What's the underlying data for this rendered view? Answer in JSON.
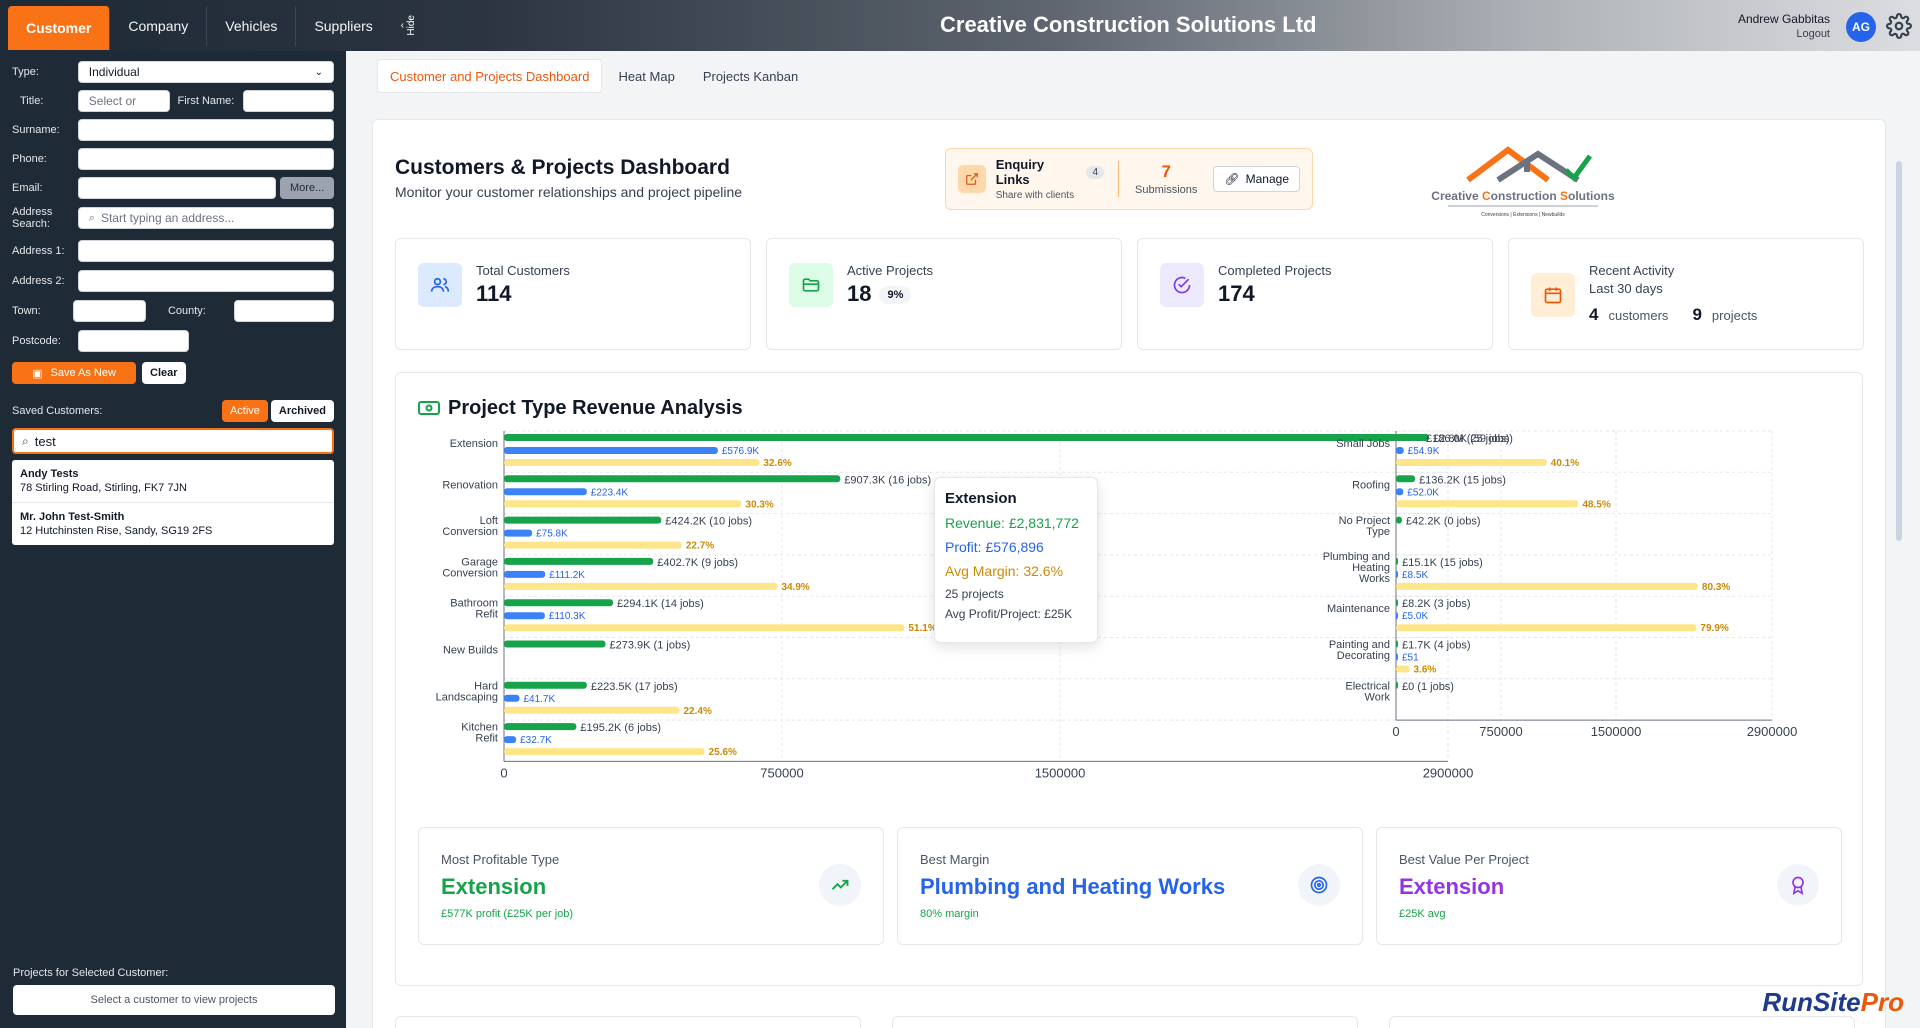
{
  "app_title": "Creative Construction Solutions Ltd",
  "top_tabs": [
    {
      "label": "Customer",
      "active": true
    },
    {
      "label": "Company",
      "active": false
    },
    {
      "label": "Vehicles",
      "active": false
    },
    {
      "label": "Suppliers",
      "active": false
    }
  ],
  "hide_label": "Hide",
  "user": {
    "name": "Andrew Gabbitas",
    "logout": "Logout",
    "initials": "AG"
  },
  "form": {
    "type_label": "Type:",
    "type_value": "Individual",
    "title_label": "Title:",
    "title_placeholder": "Select or",
    "first_name_label": "First Name:",
    "surname_label": "Surname:",
    "phone_label": "Phone:",
    "email_label": "Email:",
    "more_label": "More...",
    "address_search_label": "Address Search:",
    "address_search_placeholder": "Start typing an address...",
    "address1_label": "Address 1:",
    "address2_label": "Address 2:",
    "town_label": "Town:",
    "county_label": "County:",
    "postcode_label": "Postcode:",
    "save_label": "Save As New",
    "clear_label": "Clear"
  },
  "saved": {
    "label": "Saved Customers:",
    "active_label": "Active",
    "archived_label": "Archived",
    "search_value": "test",
    "customers": [
      {
        "name": "Andy Tests",
        "address": "78 Stirling Road, Stirling, FK7 7JN"
      },
      {
        "name": "Mr. John Test-Smith",
        "address": "12 Hutchinsten Rise, Sandy, SG19 2FS"
      }
    ]
  },
  "projects_for_customer": {
    "label": "Projects for Selected Customer:",
    "placeholder": "Select a customer to view projects"
  },
  "main_tabs": [
    {
      "label": "Customer and Projects Dashboard",
      "active": true
    },
    {
      "label": "Heat Map",
      "active": false
    },
    {
      "label": "Projects Kanban",
      "active": false
    }
  ],
  "dashboard": {
    "title": "Customers & Projects Dashboard",
    "subtitle": "Monitor your customer relationships and project pipeline",
    "enquiry": {
      "title": "Enquiry Links",
      "count_badge": "4",
      "sub": "Share with clients",
      "submissions": "7",
      "submissions_label": "Submissions",
      "manage_label": "Manage"
    },
    "logo": {
      "line1a": "Creative ",
      "line1b": "C",
      "line1c": "onstruction ",
      "line1d": "S",
      "line1e": "olutions",
      "tagline": "Conversions | Extensions | Newbuilds"
    }
  },
  "stats": [
    {
      "label": "Total Customers",
      "value": "114",
      "icon": "users-icon",
      "color": "#2563eb",
      "bg": "#dbeafe"
    },
    {
      "label": "Active Projects",
      "value": "18",
      "badge": "9%",
      "icon": "folder-icon",
      "color": "#16a34a",
      "bg": "#dcfce7"
    },
    {
      "label": "Completed Projects",
      "value": "174",
      "icon": "check-circle-icon",
      "color": "#7c3aed",
      "bg": "#ede9fe"
    },
    {
      "label": "Recent Activity",
      "sub": "Last 30 days",
      "customers": "4",
      "customers_label": "customers",
      "projects": "9",
      "projects_label": "projects",
      "icon": "calendar-icon",
      "color": "#ea580c",
      "bg": "#ffedd5"
    }
  ],
  "revenue": {
    "title": "Project Type Revenue Analysis"
  },
  "tooltip": {
    "title": "Extension",
    "revenue": "Revenue: £2,831,772",
    "profit": "Profit: £576,896",
    "margin": "Avg Margin: 32.6%",
    "projects": "25 projects",
    "avg": "Avg Profit/Project: £25K"
  },
  "chart_data": [
    {
      "type": "bar",
      "orientation": "horizontal",
      "categories": [
        "Extension",
        "Renovation",
        "Loft Conversion",
        "Garage Conversion",
        "Bathroom Refit",
        "New Builds",
        "Hard Landscaping",
        "Kitchen Refit"
      ],
      "series": [
        {
          "values": [
            2831772,
            907300,
            424200,
            402700,
            294100,
            273900,
            223500,
            195200
          ],
          "labels": [
            "£2.8M (25 jobs)",
            "£907.3K (16 jobs)",
            "£424.2K (10 jobs)",
            "£402.7K (9 jobs)",
            "£294.1K (14 jobs)",
            "£273.9K (1 jobs)",
            "£223.5K (17 jobs)",
            "£195.2K (6 jobs)"
          ],
          "color": "#16a34a"
        },
        {
          "values": [
            576896,
            223400,
            75800,
            111200,
            110300,
            0,
            41700,
            32700
          ],
          "labels": [
            "£576.9K",
            "£223.4K",
            "£75.8K",
            "£111.2K",
            "£110.3K",
            "",
            "£41.7K",
            "£32.7K"
          ],
          "color": "#3b82f6"
        },
        {
          "values_pct": [
            32.6,
            30.3,
            22.7,
            34.9,
            51.1,
            0,
            22.4,
            25.6
          ],
          "labels": [
            "32.6%",
            "30.3%",
            "22.7%",
            "34.9%",
            "51.1%",
            "",
            "22.4%",
            "25.6%"
          ],
          "color": "#fde68a",
          "label_color": "#ca8a04"
        }
      ],
      "xticks": [
        "0",
        "750000",
        "1500000",
        "2900000"
      ],
      "xlim": [
        0,
        2900000
      ]
    },
    {
      "type": "bar",
      "orientation": "horizontal",
      "categories": [
        "Small Jobs",
        "Roofing",
        "No Project Type",
        "Plumbing and Heating Works",
        "Maintenance",
        "Painting and Decorating",
        "Electrical Work"
      ],
      "series": [
        {
          "values": [
            186000,
            136200,
            42200,
            15100,
            8200,
            1700,
            0
          ],
          "labels": [
            "£186.0K (59 jobs)",
            "£136.2K (15 jobs)",
            "£42.2K (0 jobs)",
            "£15.1K (15 jobs)",
            "£8.2K (3 jobs)",
            "£1.7K (4 jobs)",
            "£0 (1 jobs)"
          ],
          "color": "#16a34a"
        },
        {
          "values": [
            54900,
            52000,
            0,
            8500,
            5000,
            51,
            0
          ],
          "labels": [
            "£54.9K",
            "£52.0K",
            "",
            "£8.5K",
            "£5.0K",
            "£51",
            ""
          ],
          "color": "#3b82f6"
        },
        {
          "values_pct": [
            40.1,
            48.5,
            0,
            80.3,
            79.9,
            3.6,
            0
          ],
          "labels": [
            "40.1%",
            "48.5%",
            "",
            "80.3%",
            "79.9%",
            "3.6%",
            ""
          ],
          "color": "#fde68a",
          "label_color": "#ca8a04"
        }
      ],
      "xticks": [
        "0",
        "750000",
        "1500000",
        "2900000"
      ],
      "xlim": [
        0,
        2900000
      ]
    }
  ],
  "summary": [
    {
      "label": "Most Profitable Type",
      "value": "Extension",
      "sub": "£577K profit (£25K per job)",
      "color": "#16a34a",
      "icon": "trending-up-icon"
    },
    {
      "label": "Best Margin",
      "value": "Plumbing and Heating Works",
      "sub": "80% margin",
      "color": "#2563eb",
      "sub_color": "#16a34a",
      "icon": "target-icon"
    },
    {
      "label": "Best Value Per Project",
      "value": "Extension",
      "sub": "£25K avg",
      "color": "#9333ea",
      "sub_color": "#16a34a",
      "icon": "award-icon"
    }
  ],
  "brand": {
    "part1": "RunSite",
    "part2": "Pro"
  }
}
